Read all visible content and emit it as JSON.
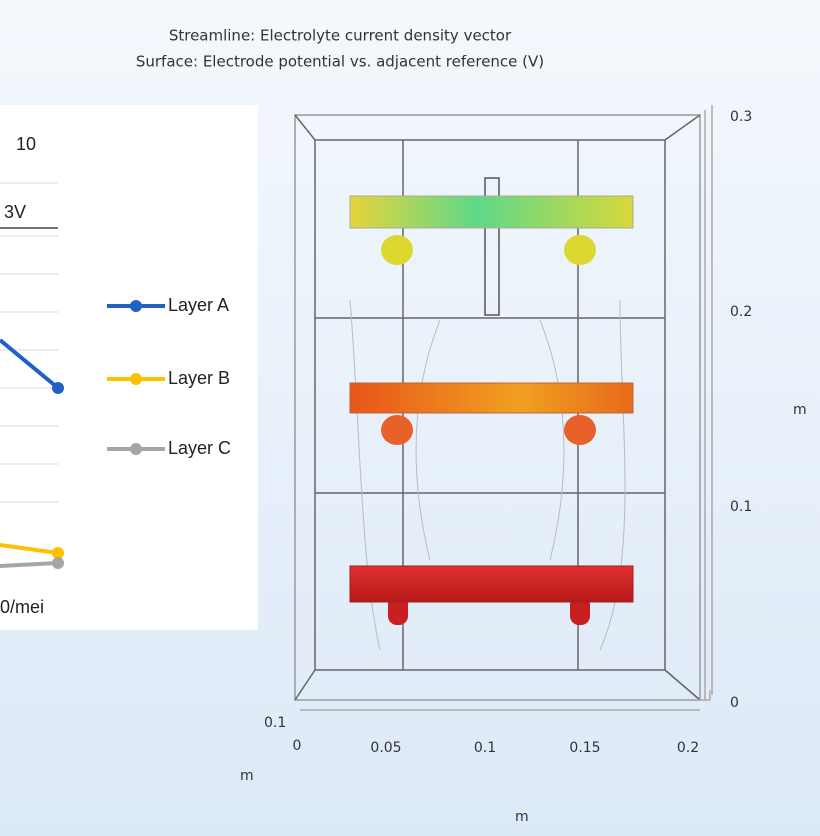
{
  "plot": {
    "title_lines": [
      "Streamline: Electrolyte current density vector",
      "Surface: Electrode potential vs. adjacent reference (V)"
    ],
    "right_axis": {
      "ticks": [
        "0.3",
        "0.2",
        "0.1",
        "0"
      ],
      "label": "m"
    },
    "bottom_axis": {
      "corner_tick": "0.1",
      "ticks": [
        "0",
        "0.05",
        "0.1",
        "0.15",
        "0.2"
      ],
      "label": "m",
      "depth_label": "m"
    }
  },
  "inset": {
    "top_label": "10",
    "annotation": "3V",
    "bottom_label": "0/mei",
    "legend": [
      {
        "name": "Layer A",
        "color": "#2160c4"
      },
      {
        "name": "Layer B",
        "color": "#ffc000"
      },
      {
        "name": "Layer C",
        "color": "#a5a5a5"
      }
    ]
  }
}
